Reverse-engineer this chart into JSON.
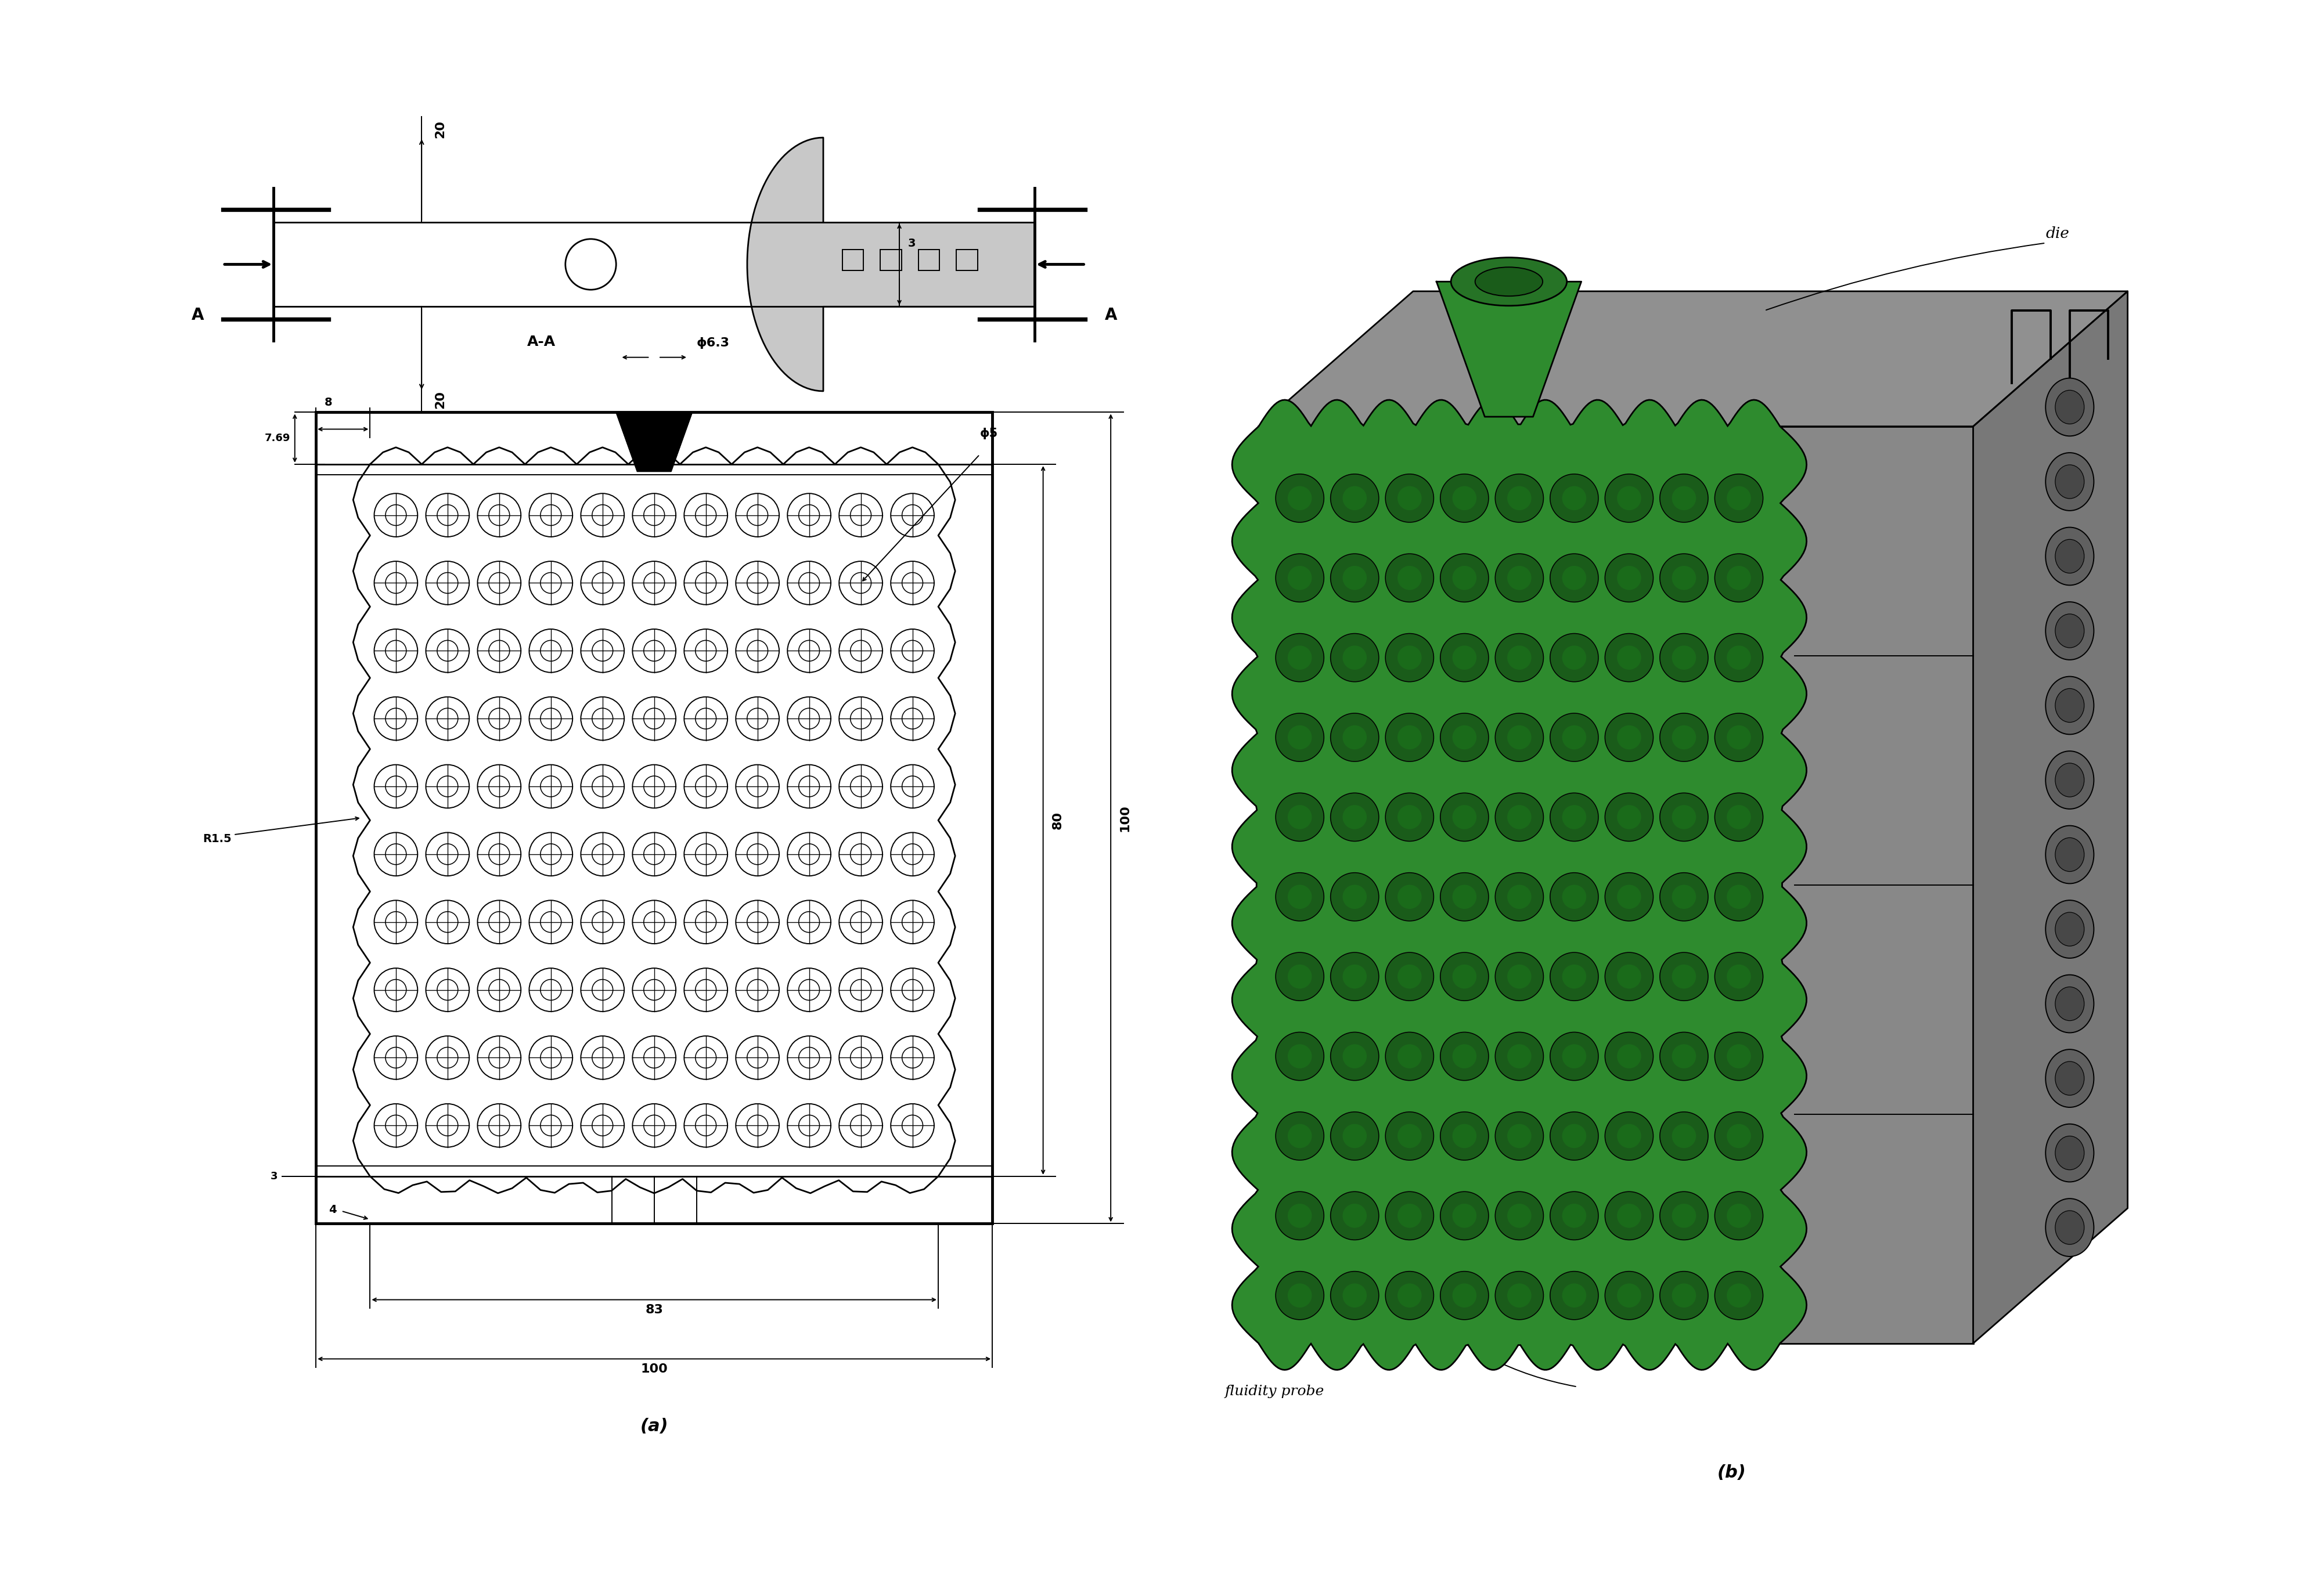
{
  "fig_width": 39.77,
  "fig_height": 27.5,
  "bg_color": "#ffffff",
  "gray_fill": "#c8c8c8",
  "gray_fill2": "#d8d8d8",
  "green_fill": "#2e8b2e",
  "green_dark": "#1a5c1a",
  "green_mid": "#267326",
  "gray_3d_top": "#909090",
  "gray_3d_right": "#787878",
  "gray_3d_front": "#888888",
  "gray_circles": "#707070",
  "label_a": "(a)",
  "label_b": "(b)",
  "die_label": "die",
  "probe_label": "fluidity probe",
  "dim_20_top": "20",
  "dim_20_bot": "20",
  "dim_3_top": "3",
  "dim_phi63": "ϕ6.3",
  "dim_phi5": "ϕ5",
  "dim_8": "8",
  "dim_769": "7.69",
  "dim_R15": "R1.5",
  "dim_3b": "3",
  "dim_4": "4",
  "dim_80": "80",
  "dim_100r": "100",
  "dim_83": "83",
  "dim_100b": "100",
  "label_AA": "A-A",
  "label_A": "A"
}
